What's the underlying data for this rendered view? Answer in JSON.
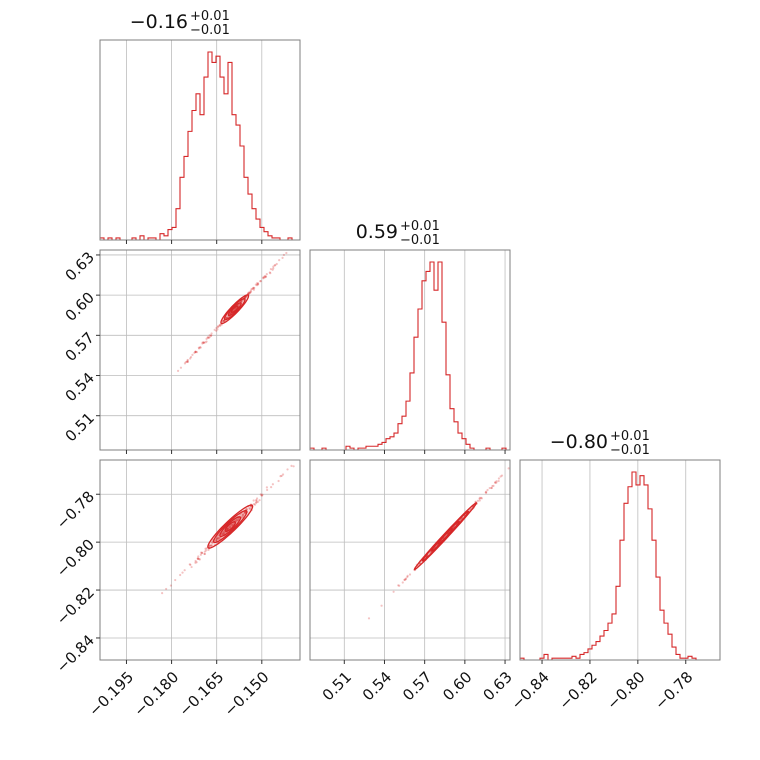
{
  "chart_data": {
    "type": "corner",
    "accent_color": "#d62728",
    "grid": true,
    "parameters": [
      {
        "title": {
          "value": "−0.16",
          "plus": "+0.01",
          "minus": "−0.01"
        },
        "range": [
          -0.2038,
          -0.1373
        ],
        "ticks": [
          -0.195,
          -0.18,
          -0.165,
          -0.15
        ],
        "tick_labels": [
          "−0.195",
          "−0.180",
          "−0.165",
          "−0.150"
        ]
      },
      {
        "title": {
          "value": "0.59",
          "plus": "+0.01",
          "minus": "−0.01"
        },
        "range": [
          0.4844,
          0.6337
        ],
        "ticks": [
          0.51,
          0.54,
          0.57,
          0.6,
          0.63
        ],
        "tick_labels": [
          "0.51",
          "0.54",
          "0.57",
          "0.60",
          "0.63"
        ]
      },
      {
        "title": {
          "value": "−0.80",
          "plus": "+0.01",
          "minus": "−0.01"
        },
        "range": [
          -0.8492,
          -0.7657
        ],
        "ticks": [
          -0.84,
          -0.82,
          -0.8,
          -0.78
        ],
        "tick_labels": [
          "−0.84",
          "−0.82",
          "−0.80",
          "−0.78"
        ]
      }
    ],
    "histograms": [
      {
        "param": 0,
        "range": [
          -0.2038,
          -0.1373
        ],
        "counts": [
          1,
          0,
          1,
          0,
          1,
          0,
          0,
          0,
          1,
          0,
          2,
          0,
          1,
          1,
          0,
          3,
          2,
          5,
          6,
          15,
          30,
          40,
          52,
          62,
          70,
          60,
          78,
          90,
          85,
          88,
          78,
          70,
          85,
          60,
          55,
          45,
          30,
          22,
          15,
          10,
          6,
          4,
          2,
          1,
          1,
          0,
          0,
          1,
          0,
          0
        ]
      },
      {
        "param": 1,
        "range": [
          0.4844,
          0.6337
        ],
        "counts": [
          1,
          0,
          0,
          1,
          0,
          0,
          0,
          0,
          0,
          2,
          1,
          0,
          1,
          1,
          2,
          2,
          2,
          3,
          4,
          6,
          7,
          9,
          14,
          18,
          26,
          41,
          60,
          75,
          90,
          95,
          100,
          85,
          100,
          68,
          40,
          22,
          15,
          9,
          6,
          3,
          1,
          0,
          0,
          0,
          1,
          0,
          0,
          0,
          1,
          0
        ]
      },
      {
        "param": 2,
        "range": [
          -0.8492,
          -0.7657
        ],
        "counts": [
          1,
          0,
          0,
          0,
          0,
          1,
          3,
          0,
          1,
          1,
          1,
          1,
          1,
          2,
          1,
          3,
          4,
          6,
          8,
          10,
          13,
          16,
          20,
          25,
          40,
          65,
          85,
          94,
          102,
          95,
          100,
          95,
          82,
          65,
          45,
          27,
          20,
          14,
          7,
          3,
          1,
          1,
          2,
          1,
          0,
          0,
          0,
          0,
          0,
          0
        ]
      }
    ],
    "contours": [
      {
        "x_param": 0,
        "y_param": 1,
        "slope": 2.45,
        "center": [
          -0.159,
          0.5895
        ],
        "levels": [
          {
            "half_length": 0.0025,
            "half_width": 0.0006
          },
          {
            "half_length": 0.0052,
            "half_width": 0.0009
          },
          {
            "half_length": 0.0085,
            "half_width": 0.0013
          },
          {
            "half_length": 0.0115,
            "half_width": 0.0016
          }
        ]
      },
      {
        "x_param": 0,
        "y_param": 2,
        "slope": 1.22,
        "center": [
          -0.1605,
          -0.7935
        ],
        "levels": [
          {
            "half_length": 0.0025,
            "half_width": 0.0008
          },
          {
            "half_length": 0.0052,
            "half_width": 0.0012
          },
          {
            "half_length": 0.0085,
            "half_width": 0.0016
          },
          {
            "half_length": 0.0115,
            "half_width": 0.002
          }
        ]
      },
      {
        "x_param": 1,
        "y_param": 2,
        "slope": 0.6,
        "center": [
          0.5855,
          -0.7975
        ],
        "levels": [
          {
            "half_length": 0.006,
            "half_width": 0.0006
          },
          {
            "half_length": 0.012,
            "half_width": 0.0008
          },
          {
            "half_length": 0.02,
            "half_width": 0.001
          },
          {
            "half_length": 0.027,
            "half_width": 0.0012
          }
        ]
      }
    ]
  }
}
